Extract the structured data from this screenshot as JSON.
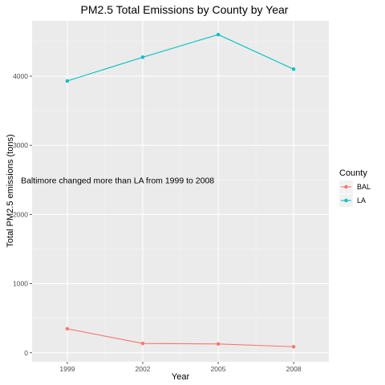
{
  "chart_data": {
    "type": "line",
    "title": "PM2.5 Total Emissions by County by Year",
    "xlabel": "Year",
    "ylabel": "Total PM2.5 emissions (tons)",
    "x": [
      1999,
      2002,
      2005,
      2008
    ],
    "xlim": [
      1997.6,
      2009.4
    ],
    "ylim": [
      -130,
      4800
    ],
    "xticks": [
      1999,
      2002,
      2005,
      2008
    ],
    "yticks": [
      0,
      1000,
      2000,
      3000,
      4000
    ],
    "grid": true,
    "legend": {
      "title": "County",
      "placement": "right"
    },
    "series": [
      {
        "name": "BAL",
        "color": "#F8766D",
        "values": [
          346.8,
          134.3,
          127.4,
          87.4
        ]
      },
      {
        "name": "LA",
        "color": "#00BFC4",
        "values": [
          3931.1,
          4274.0,
          4601.4,
          4101.3
        ]
      }
    ],
    "annotation": {
      "text": "Baltimore changed more than LA from 1999 to 2008",
      "x": 2001,
      "y": 2500
    }
  }
}
